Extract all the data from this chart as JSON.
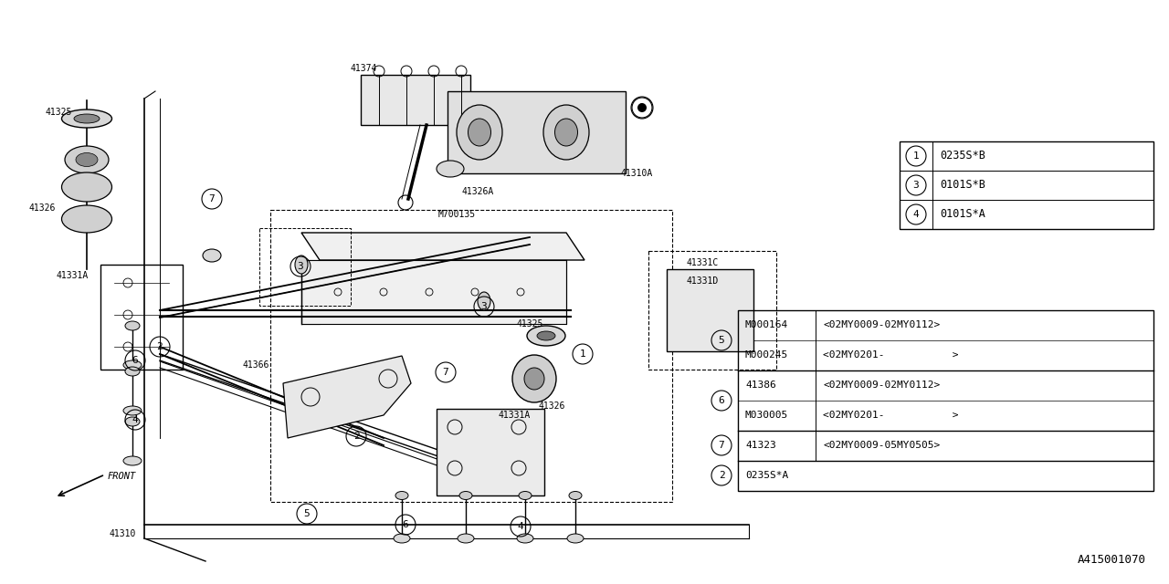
{
  "bg_color": "#ffffff",
  "line_color": "#000000",
  "diagram_id": "A415001070",
  "top_legend": [
    {
      "num": "1",
      "text": "0235S*B"
    },
    {
      "num": "3",
      "text": "0101S*B"
    },
    {
      "num": "4",
      "text": "0101S*A"
    }
  ],
  "bottom_legend_groups": [
    {
      "rows": [
        {
          "col1": "M000164",
          "col2": "<02MY0009-02MY0112>"
        },
        {
          "col1": "M000245",
          "col2": "<02MY0201-           >"
        }
      ],
      "circle": "5"
    },
    {
      "rows": [
        {
          "col1": "41386",
          "col2": "<02MY0009-02MY0112>"
        },
        {
          "col1": "M030005",
          "col2": "<02MY0201-           >"
        }
      ],
      "circle": "6"
    },
    {
      "rows": [
        {
          "col1": "41323",
          "col2": "<02MY0009-05MY0505>"
        }
      ],
      "circle": "7"
    },
    {
      "rows": [
        {
          "col1": "0235S*A",
          "col2": ""
        }
      ],
      "circle": "2"
    }
  ]
}
